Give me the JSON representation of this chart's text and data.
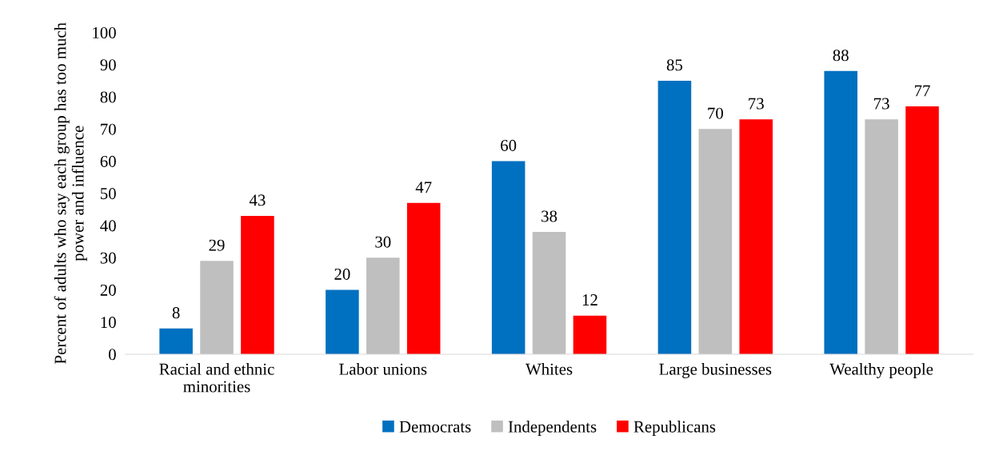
{
  "chart_data": {
    "type": "bar",
    "ylabel": "Percent of adults who say each group has too much power and influence",
    "categories": [
      "Racial and ethnic\nminorities",
      "Labor unions",
      "Whites",
      "Large businesses",
      "Wealthy people"
    ],
    "series": [
      {
        "name": "Democrats",
        "color": "#0070c0",
        "values": [
          8,
          20,
          60,
          85,
          88
        ]
      },
      {
        "name": "Independents",
        "color": "#bfbfbf",
        "values": [
          29,
          30,
          38,
          70,
          73
        ]
      },
      {
        "name": "Republicans",
        "color": "#ff0000",
        "values": [
          43,
          47,
          12,
          73,
          77
        ]
      }
    ],
    "ylim": [
      0,
      100
    ],
    "yticks": [
      0,
      10,
      20,
      30,
      40,
      50,
      60,
      70,
      80,
      90,
      100
    ],
    "data_labels": true,
    "legend": "bottom",
    "grid": false
  }
}
